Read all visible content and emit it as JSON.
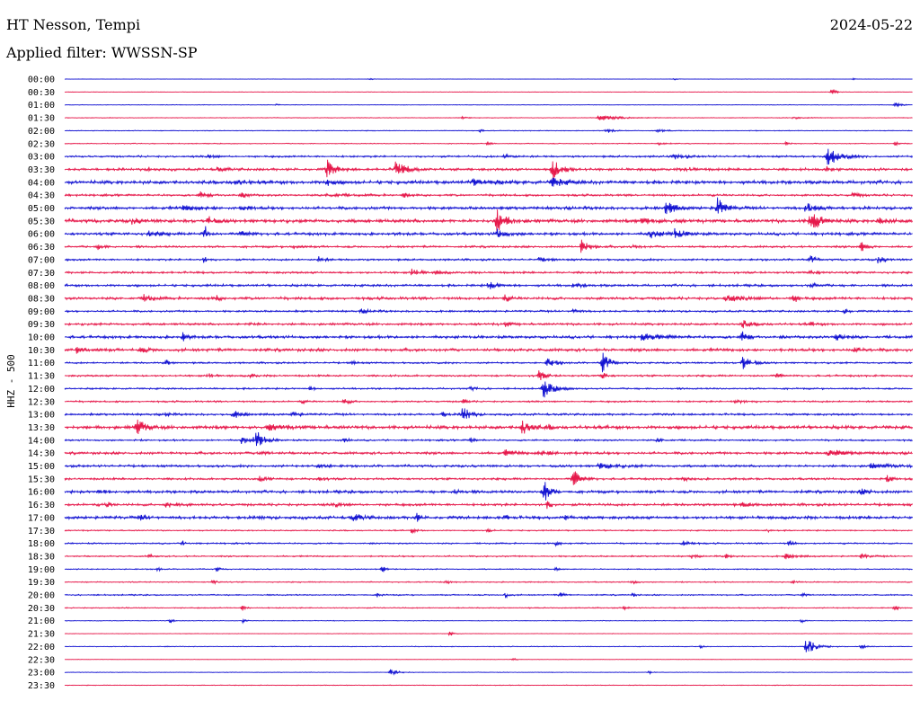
{
  "header": {
    "station": "HT Nesson, Tempi",
    "date": "2024-05-22",
    "filter": "Applied filter: WWSSN-SP"
  },
  "chart_data": {
    "type": "line",
    "ylabel": "HHZ - 500",
    "colors": {
      "even": "#1414d2",
      "odd": "#e6194b"
    },
    "rows": [
      {
        "label": "00:00",
        "noise": 0.15,
        "events": [
          [
            0.36,
            1.2,
            0.003
          ],
          [
            0.72,
            1,
            0.003
          ],
          [
            0.93,
            0.8,
            0.003
          ]
        ]
      },
      {
        "label": "00:30",
        "noise": 0.2,
        "events": [
          [
            0.905,
            3,
            0.005
          ]
        ]
      },
      {
        "label": "01:00",
        "noise": 0.25,
        "events": [
          [
            0.25,
            1,
            0.004
          ],
          [
            0.98,
            2.5,
            0.006
          ]
        ]
      },
      {
        "label": "01:30",
        "noise": 0.3,
        "events": [
          [
            0.47,
            2,
            0.004
          ],
          [
            0.63,
            3.5,
            0.02
          ],
          [
            0.86,
            1.5,
            0.01
          ]
        ]
      },
      {
        "label": "02:00",
        "noise": 0.35,
        "events": [
          [
            0.49,
            1.5,
            0.004
          ],
          [
            0.64,
            2.5,
            0.006
          ],
          [
            0.7,
            1.8,
            0.008
          ]
        ]
      },
      {
        "label": "02:30",
        "noise": 0.4,
        "events": [
          [
            0.5,
            2,
            0.004
          ],
          [
            0.7,
            2,
            0.006
          ],
          [
            0.85,
            2,
            0.005
          ],
          [
            0.98,
            2,
            0.004
          ]
        ]
      },
      {
        "label": "03:00",
        "noise": 0.9,
        "events": [
          [
            0.17,
            2.2,
            0.006
          ],
          [
            0.52,
            2.5,
            0.008
          ],
          [
            0.72,
            2.5,
            0.01
          ],
          [
            0.9,
            11,
            0.012
          ]
        ]
      },
      {
        "label": "03:30",
        "noise": 1.2,
        "events": [
          [
            0.1,
            2,
            0.004
          ],
          [
            0.18,
            2.5,
            0.008
          ],
          [
            0.31,
            11,
            0.008
          ],
          [
            0.39,
            9,
            0.012
          ],
          [
            0.575,
            13,
            0.01
          ],
          [
            0.735,
            2.5,
            0.008
          ],
          [
            0.9,
            2.5,
            0.006
          ]
        ]
      },
      {
        "label": "04:00",
        "noise": 1.6,
        "events": [
          [
            0.2,
            3,
            0.01
          ],
          [
            0.31,
            4.5,
            0.006
          ],
          [
            0.48,
            3,
            0.02
          ],
          [
            0.575,
            6,
            0.012
          ]
        ]
      },
      {
        "label": "04:30",
        "noise": 1.0,
        "events": [
          [
            0.16,
            3,
            0.01
          ],
          [
            0.21,
            2.5,
            0.006
          ],
          [
            0.31,
            2,
            0.02
          ],
          [
            0.4,
            3,
            0.004
          ],
          [
            0.93,
            3,
            0.006
          ]
        ]
      },
      {
        "label": "05:00",
        "noise": 1.4,
        "events": [
          [
            0.14,
            2.5,
            0.02
          ],
          [
            0.21,
            3.5,
            0.008
          ],
          [
            0.71,
            9,
            0.008
          ],
          [
            0.77,
            11,
            0.008
          ],
          [
            0.875,
            6,
            0.01
          ]
        ]
      },
      {
        "label": "05:30",
        "noise": 1.6,
        "events": [
          [
            0.08,
            3,
            0.008
          ],
          [
            0.17,
            5,
            0.006
          ],
          [
            0.51,
            12,
            0.01
          ],
          [
            0.68,
            3,
            0.02
          ],
          [
            0.88,
            13,
            0.01
          ],
          [
            0.96,
            3,
            0.01
          ]
        ]
      },
      {
        "label": "06:00",
        "noise": 1.3,
        "events": [
          [
            0.1,
            3,
            0.01
          ],
          [
            0.165,
            14,
            0.002
          ],
          [
            0.21,
            3,
            0.008
          ],
          [
            0.51,
            5,
            0.01
          ],
          [
            0.69,
            4,
            0.015
          ],
          [
            0.72,
            5,
            0.01
          ]
        ]
      },
      {
        "label": "06:30",
        "noise": 1.0,
        "events": [
          [
            0.04,
            2.5,
            0.006
          ],
          [
            0.27,
            2,
            0.006
          ],
          [
            0.61,
            8,
            0.008
          ],
          [
            0.67,
            2.5,
            0.006
          ],
          [
            0.94,
            5,
            0.006
          ]
        ]
      },
      {
        "label": "07:00",
        "noise": 0.9,
        "events": [
          [
            0.165,
            4,
            0.003
          ],
          [
            0.3,
            3,
            0.006
          ],
          [
            0.56,
            2,
            0.01
          ],
          [
            0.88,
            5,
            0.004
          ],
          [
            0.96,
            4,
            0.006
          ]
        ]
      },
      {
        "label": "07:30",
        "noise": 1.0,
        "events": [
          [
            0.41,
            4,
            0.008
          ],
          [
            0.44,
            2,
            0.006
          ],
          [
            0.88,
            2,
            0.008
          ]
        ]
      },
      {
        "label": "08:00",
        "noise": 1.1,
        "events": [
          [
            0.5,
            4,
            0.01
          ],
          [
            0.6,
            2,
            0.01
          ],
          [
            0.88,
            2,
            0.008
          ]
        ]
      },
      {
        "label": "08:30",
        "noise": 1.3,
        "events": [
          [
            0.095,
            6,
            0.006
          ],
          [
            0.18,
            3,
            0.003
          ],
          [
            0.52,
            4,
            0.004
          ],
          [
            0.78,
            3,
            0.02
          ],
          [
            0.86,
            5,
            0.004
          ]
        ]
      },
      {
        "label": "09:00",
        "noise": 0.9,
        "events": [
          [
            0.35,
            2,
            0.01
          ],
          [
            0.6,
            2,
            0.006
          ],
          [
            0.92,
            3,
            0.004
          ]
        ]
      },
      {
        "label": "09:30",
        "noise": 1.1,
        "events": [
          [
            0.22,
            2,
            0.006
          ],
          [
            0.52,
            3,
            0.006
          ],
          [
            0.8,
            4,
            0.01
          ],
          [
            0.88,
            2,
            0.006
          ]
        ]
      },
      {
        "label": "10:00",
        "noise": 1.3,
        "events": [
          [
            0.14,
            6,
            0.003
          ],
          [
            0.68,
            3,
            0.02
          ],
          [
            0.8,
            6,
            0.006
          ],
          [
            0.91,
            5,
            0.008
          ]
        ]
      },
      {
        "label": "10:30",
        "noise": 1.4,
        "events": [
          [
            0.015,
            3,
            0.01
          ],
          [
            0.09,
            2.5,
            0.008
          ],
          [
            0.93,
            2.5,
            0.01
          ]
        ]
      },
      {
        "label": "11:00",
        "noise": 0.8,
        "events": [
          [
            0.12,
            3,
            0.004
          ],
          [
            0.34,
            2,
            0.004
          ],
          [
            0.57,
            5,
            0.008
          ],
          [
            0.635,
            13,
            0.006
          ],
          [
            0.8,
            8,
            0.008
          ]
        ]
      },
      {
        "label": "11:30",
        "noise": 0.9,
        "events": [
          [
            0.17,
            3,
            0.004
          ],
          [
            0.22,
            2,
            0.004
          ],
          [
            0.56,
            6,
            0.006
          ],
          [
            0.635,
            4,
            0.004
          ],
          [
            0.84,
            2.5,
            0.004
          ]
        ]
      },
      {
        "label": "12:00",
        "noise": 0.8,
        "events": [
          [
            0.29,
            2.5,
            0.004
          ],
          [
            0.48,
            2,
            0.006
          ],
          [
            0.565,
            10,
            0.01
          ]
        ]
      },
      {
        "label": "12:30",
        "noise": 0.8,
        "events": [
          [
            0.28,
            2,
            0.004
          ],
          [
            0.33,
            3,
            0.006
          ],
          [
            0.47,
            3,
            0.004
          ],
          [
            0.79,
            2.5,
            0.01
          ]
        ]
      },
      {
        "label": "13:00",
        "noise": 1.0,
        "events": [
          [
            0.12,
            2.5,
            0.004
          ],
          [
            0.2,
            4,
            0.008
          ],
          [
            0.27,
            3,
            0.006
          ],
          [
            0.445,
            3,
            0.004
          ],
          [
            0.47,
            11,
            0.006
          ]
        ]
      },
      {
        "label": "13:30",
        "noise": 1.6,
        "events": [
          [
            0.085,
            10,
            0.008
          ],
          [
            0.24,
            3,
            0.02
          ],
          [
            0.54,
            9,
            0.008
          ],
          [
            0.57,
            3,
            0.004
          ]
        ]
      },
      {
        "label": "14:00",
        "noise": 0.8,
        "events": [
          [
            0.21,
            6,
            0.004
          ],
          [
            0.225,
            13,
            0.008
          ],
          [
            0.33,
            3,
            0.004
          ],
          [
            0.48,
            3,
            0.004
          ],
          [
            0.7,
            2,
            0.008
          ]
        ]
      },
      {
        "label": "14:30",
        "noise": 1.2,
        "events": [
          [
            0.23,
            2.5,
            0.008
          ],
          [
            0.52,
            3,
            0.01
          ],
          [
            0.56,
            2.5,
            0.02
          ],
          [
            0.9,
            3,
            0.02
          ]
        ]
      },
      {
        "label": "15:00",
        "noise": 1.1,
        "events": [
          [
            0.3,
            2,
            0.01
          ],
          [
            0.63,
            3,
            0.02
          ],
          [
            0.95,
            2.5,
            0.02
          ]
        ]
      },
      {
        "label": "15:30",
        "noise": 1.0,
        "events": [
          [
            0.23,
            2.5,
            0.01
          ],
          [
            0.3,
            2.5,
            0.006
          ],
          [
            0.6,
            10,
            0.008
          ],
          [
            0.73,
            2.5,
            0.006
          ],
          [
            0.97,
            3,
            0.008
          ]
        ]
      },
      {
        "label": "16:00",
        "noise": 1.3,
        "events": [
          [
            0.04,
            2.5,
            0.008
          ],
          [
            0.46,
            2.5,
            0.006
          ],
          [
            0.565,
            14,
            0.006
          ],
          [
            0.94,
            3,
            0.01
          ]
        ]
      },
      {
        "label": "16:30",
        "noise": 1.2,
        "events": [
          [
            0.05,
            3,
            0.004
          ],
          [
            0.12,
            3,
            0.01
          ],
          [
            0.32,
            2.5,
            0.006
          ],
          [
            0.57,
            6,
            0.003
          ],
          [
            0.8,
            2.5,
            0.01
          ]
        ]
      },
      {
        "label": "17:00",
        "noise": 1.4,
        "events": [
          [
            0.09,
            2.5,
            0.008
          ],
          [
            0.23,
            2,
            0.004
          ],
          [
            0.34,
            4,
            0.01
          ],
          [
            0.415,
            6,
            0.003
          ],
          [
            0.52,
            2.5,
            0.004
          ],
          [
            0.59,
            3,
            0.004
          ]
        ]
      },
      {
        "label": "17:30",
        "noise": 0.6,
        "events": [
          [
            0.41,
            3,
            0.004
          ],
          [
            0.5,
            2,
            0.004
          ],
          [
            0.83,
            2,
            0.003
          ]
        ]
      },
      {
        "label": "18:00",
        "noise": 0.7,
        "events": [
          [
            0.14,
            2.5,
            0.004
          ],
          [
            0.58,
            2,
            0.006
          ],
          [
            0.73,
            4,
            0.006
          ],
          [
            0.855,
            3.5,
            0.004
          ]
        ]
      },
      {
        "label": "18:30",
        "noise": 0.7,
        "events": [
          [
            0.1,
            2,
            0.004
          ],
          [
            0.74,
            2.5,
            0.004
          ],
          [
            0.78,
            3,
            0.004
          ],
          [
            0.85,
            3,
            0.01
          ],
          [
            0.94,
            2.5,
            0.008
          ]
        ]
      },
      {
        "label": "19:00",
        "noise": 0.5,
        "events": [
          [
            0.11,
            2.5,
            0.003
          ],
          [
            0.18,
            2.5,
            0.003
          ],
          [
            0.375,
            4,
            0.004
          ],
          [
            0.58,
            2,
            0.004
          ]
        ]
      },
      {
        "label": "19:30",
        "noise": 0.5,
        "events": [
          [
            0.175,
            3,
            0.004
          ],
          [
            0.45,
            2,
            0.004
          ],
          [
            0.67,
            2.5,
            0.004
          ],
          [
            0.86,
            2,
            0.004
          ]
        ]
      },
      {
        "label": "20:00",
        "noise": 0.6,
        "events": [
          [
            0.37,
            3,
            0.003
          ],
          [
            0.52,
            3.5,
            0.003
          ],
          [
            0.585,
            3,
            0.004
          ],
          [
            0.67,
            2,
            0.003
          ],
          [
            0.87,
            3,
            0.004
          ]
        ]
      },
      {
        "label": "20:30",
        "noise": 0.5,
        "events": [
          [
            0.21,
            3,
            0.004
          ],
          [
            0.66,
            2,
            0.004
          ],
          [
            0.98,
            3,
            0.003
          ]
        ]
      },
      {
        "label": "21:00",
        "noise": 0.3,
        "events": [
          [
            0.125,
            3,
            0.003
          ],
          [
            0.21,
            2,
            0.003
          ],
          [
            0.87,
            2,
            0.003
          ]
        ]
      },
      {
        "label": "21:30",
        "noise": 0.2,
        "events": [
          [
            0.455,
            3,
            0.004
          ]
        ]
      },
      {
        "label": "22:00",
        "noise": 0.35,
        "events": [
          [
            0.75,
            2.5,
            0.003
          ],
          [
            0.875,
            9,
            0.01
          ],
          [
            0.94,
            2,
            0.004
          ]
        ]
      },
      {
        "label": "22:30",
        "noise": 0.2,
        "events": [
          [
            0.53,
            1.5,
            0.003
          ]
        ]
      },
      {
        "label": "23:00",
        "noise": 0.25,
        "events": [
          [
            0.385,
            4,
            0.008
          ],
          [
            0.69,
            1.5,
            0.003
          ]
        ]
      },
      {
        "label": "23:30",
        "noise": 0.3,
        "events": []
      }
    ]
  }
}
